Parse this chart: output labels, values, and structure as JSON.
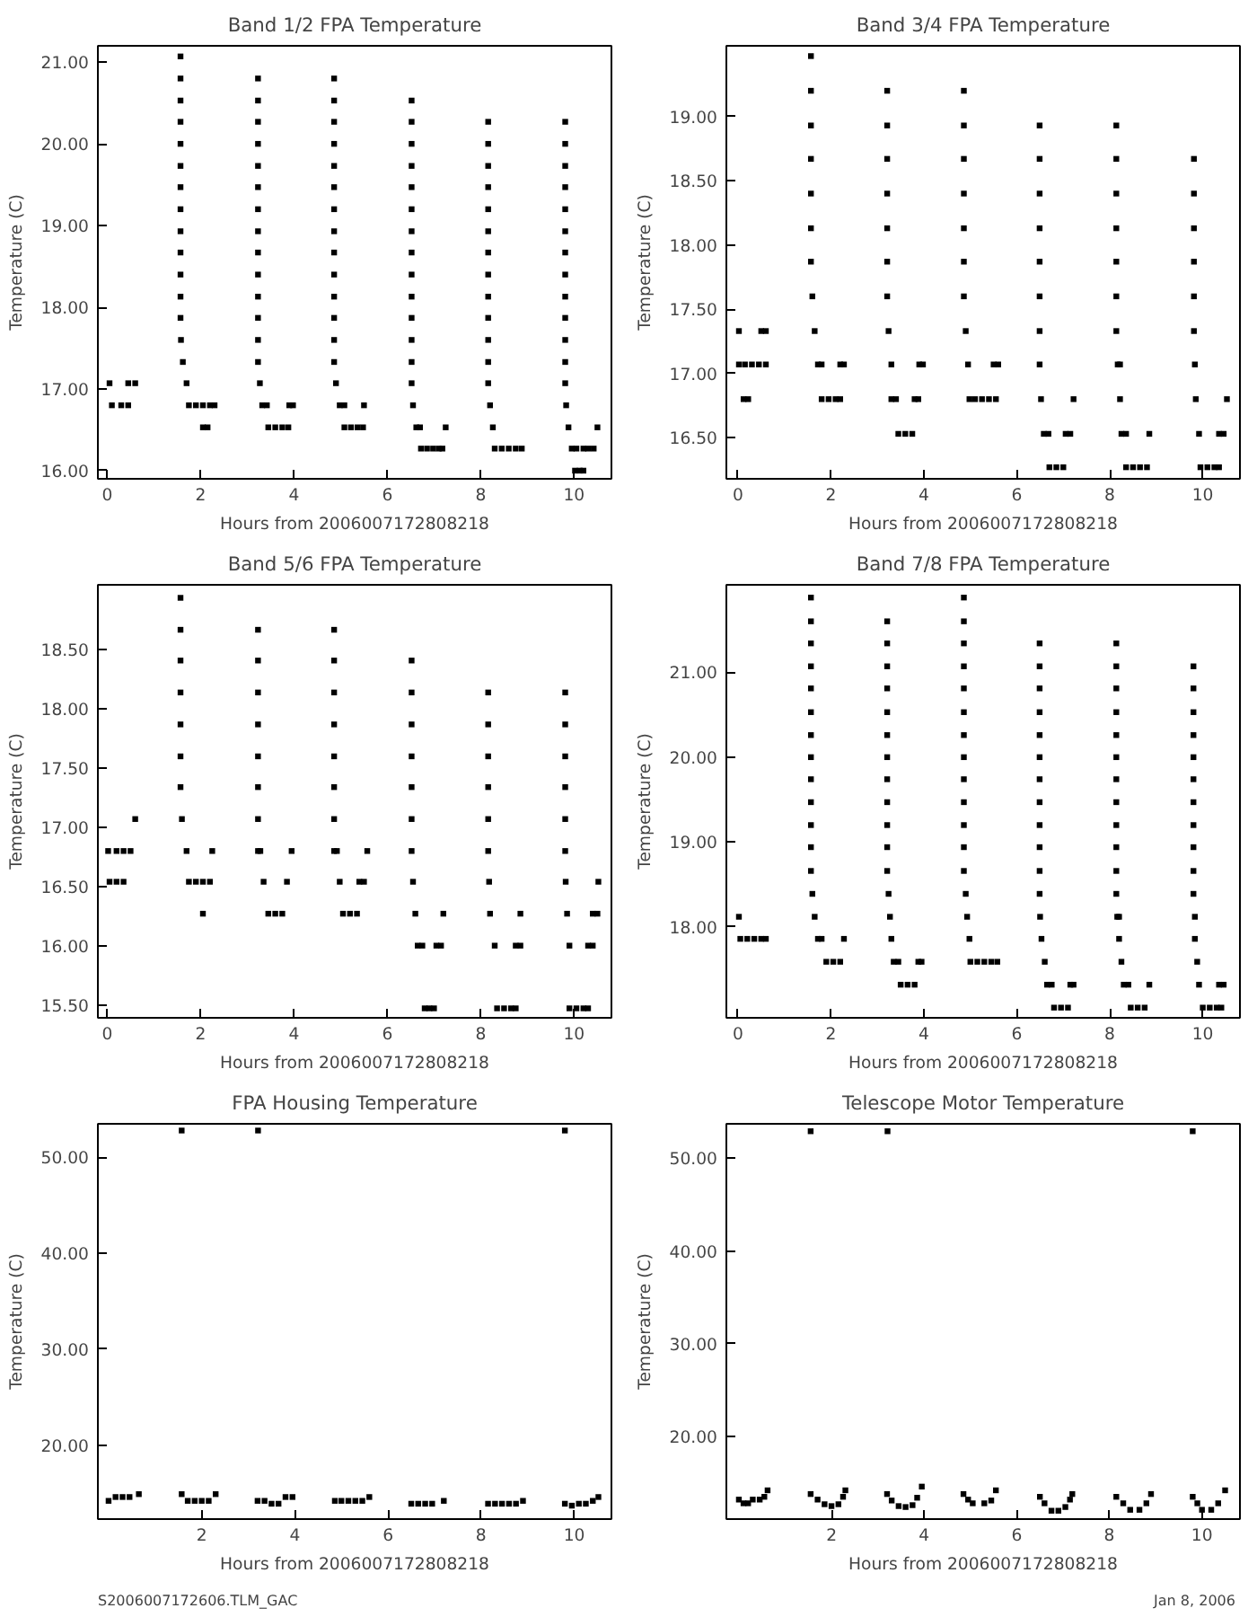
{
  "chart_data": [
    {
      "type": "scatter",
      "title": "Band 1/2 FPA Temperature",
      "xlabel": "Hours from 2006007172808218",
      "ylabel": "Temperature (C)",
      "marker": "square",
      "xlim": [
        -0.2,
        10.8
      ],
      "xticks": [
        0,
        2,
        4,
        6,
        8,
        10
      ],
      "ylim": [
        15.9,
        21.2
      ],
      "yticks": [
        {
          "value": 16,
          "label": "16.00"
        },
        {
          "value": 17,
          "label": "17.00"
        },
        {
          "value": 18,
          "label": "18.00"
        },
        {
          "value": 19,
          "label": "19.00"
        },
        {
          "value": 20,
          "label": "20.00"
        },
        {
          "value": 21,
          "label": "21.00"
        }
      ],
      "series": [
        {
          "color": "#000000",
          "x": [
            0.05,
            0.45,
            0.6,
            0.1,
            0.3,
            0.45,
            1.57,
            1.57,
            1.57,
            1.57,
            1.57,
            1.57,
            1.57,
            1.57,
            1.57,
            1.57,
            1.57,
            1.57,
            1.57,
            1.58,
            1.62,
            1.7,
            1.75,
            1.9,
            2.05,
            2.2,
            2.3,
            2.05,
            2.15,
            3.23,
            3.23,
            3.23,
            3.23,
            3.23,
            3.23,
            3.23,
            3.23,
            3.23,
            3.23,
            3.23,
            3.23,
            3.23,
            3.23,
            3.27,
            3.32,
            3.42,
            3.45,
            3.6,
            3.75,
            3.88,
            3.9,
            3.98,
            4.86,
            4.86,
            4.86,
            4.86,
            4.86,
            4.86,
            4.86,
            4.86,
            4.86,
            4.86,
            4.86,
            4.86,
            4.86,
            4.86,
            4.9,
            4.98,
            5.08,
            5.08,
            5.22,
            5.36,
            5.48,
            5.5,
            6.52,
            6.52,
            6.52,
            6.52,
            6.52,
            6.52,
            6.52,
            6.52,
            6.52,
            6.52,
            6.52,
            6.52,
            6.52,
            6.52,
            6.55,
            6.62,
            6.7,
            6.72,
            6.85,
            6.98,
            7.1,
            7.18,
            7.25,
            8.16,
            8.16,
            8.16,
            8.16,
            8.16,
            8.16,
            8.16,
            8.16,
            8.16,
            8.16,
            8.16,
            8.16,
            8.16,
            8.2,
            8.26,
            8.3,
            8.45,
            8.6,
            8.75,
            8.88,
            9.81,
            9.81,
            9.81,
            9.81,
            9.81,
            9.81,
            9.81,
            9.81,
            9.81,
            9.81,
            9.81,
            9.81,
            9.81,
            9.83,
            9.88,
            9.95,
            10.05,
            10.02,
            10.12,
            10.2,
            10.2,
            10.3,
            10.42,
            10.5
          ],
          "values": [
            17.07,
            17.07,
            17.07,
            16.8,
            16.8,
            16.8,
            21.07,
            20.8,
            20.53,
            20.27,
            20.0,
            19.73,
            19.47,
            19.2,
            18.93,
            18.67,
            18.4,
            18.13,
            17.87,
            17.6,
            17.33,
            17.07,
            16.8,
            16.8,
            16.8,
            16.8,
            16.8,
            16.53,
            16.53,
            20.8,
            20.53,
            20.27,
            20.0,
            19.73,
            19.47,
            19.2,
            18.93,
            18.67,
            18.4,
            18.13,
            17.87,
            17.6,
            17.33,
            17.07,
            16.8,
            16.8,
            16.53,
            16.53,
            16.53,
            16.53,
            16.8,
            16.8,
            20.8,
            20.53,
            20.27,
            20.0,
            19.73,
            19.47,
            19.2,
            18.93,
            18.67,
            18.4,
            18.13,
            17.87,
            17.6,
            17.33,
            17.07,
            16.8,
            16.8,
            16.53,
            16.53,
            16.53,
            16.53,
            16.8,
            20.53,
            20.27,
            20.0,
            19.73,
            19.47,
            19.2,
            18.93,
            18.67,
            18.4,
            18.13,
            17.87,
            17.6,
            17.33,
            17.07,
            16.8,
            16.53,
            16.53,
            16.27,
            16.27,
            16.27,
            16.27,
            16.27,
            16.53,
            20.27,
            20.0,
            19.73,
            19.47,
            19.2,
            18.93,
            18.67,
            18.4,
            18.13,
            17.87,
            17.6,
            17.33,
            17.07,
            16.8,
            16.53,
            16.27,
            16.27,
            16.27,
            16.27,
            16.27,
            20.27,
            20.0,
            19.73,
            19.47,
            19.2,
            18.93,
            18.67,
            18.4,
            18.13,
            17.87,
            17.6,
            17.33,
            17.07,
            16.8,
            16.53,
            16.27,
            16.27,
            16.0,
            16.0,
            16.0,
            16.27,
            16.27,
            16.27,
            16.53
          ]
        }
      ]
    },
    {
      "type": "scatter",
      "title": "Band 3/4 FPA Temperature",
      "xlabel": "Hours from 2006007172808218",
      "ylabel": "Temperature (C)",
      "marker": "square",
      "xlim": [
        -0.25,
        10.8
      ],
      "xticks": [
        0,
        2,
        4,
        6,
        8,
        10
      ],
      "ylim": [
        16.18,
        19.55
      ],
      "yticks": [
        {
          "value": 16.5,
          "label": "16.50"
        },
        {
          "value": 17,
          "label": "17.00"
        },
        {
          "value": 17.5,
          "label": "17.50"
        },
        {
          "value": 18,
          "label": "18.00"
        },
        {
          "value": 18.5,
          "label": "18.50"
        },
        {
          "value": 19,
          "label": "19.00"
        }
      ],
      "series": [
        {
          "color": "#000000",
          "x": [
            0.02,
            0.5,
            0.6,
            0.02,
            0.15,
            0.3,
            0.45,
            0.6,
            0.12,
            0.22,
            1.57,
            1.57,
            1.57,
            1.57,
            1.57,
            1.57,
            1.57,
            1.6,
            1.65,
            1.72,
            1.8,
            1.8,
            1.95,
            2.1,
            2.2,
            2.2,
            2.28,
            3.21,
            3.21,
            3.21,
            3.21,
            3.21,
            3.21,
            3.21,
            3.24,
            3.3,
            3.3,
            3.4,
            3.45,
            3.6,
            3.75,
            3.8,
            3.88,
            3.9,
            3.98,
            4.86,
            4.86,
            4.86,
            4.86,
            4.86,
            4.86,
            4.86,
            4.9,
            4.95,
            4.98,
            5.1,
            5.25,
            5.4,
            5.55,
            5.5,
            5.6,
            6.49,
            6.49,
            6.49,
            6.49,
            6.49,
            6.49,
            6.49,
            6.49,
            6.52,
            6.58,
            6.68,
            7.05,
            7.15,
            7.22,
            6.7,
            6.85,
            7.0,
            8.14,
            8.14,
            8.14,
            8.14,
            8.14,
            8.14,
            8.14,
            8.17,
            8.22,
            8.22,
            8.25,
            8.35,
            8.35,
            8.5,
            8.65,
            8.8,
            8.85,
            9.81,
            9.81,
            9.81,
            9.81,
            9.81,
            9.81,
            9.83,
            9.85,
            9.92,
            9.95,
            10.1,
            10.25,
            10.35,
            10.35,
            10.45,
            10.52
          ],
          "values": [
            17.33,
            17.33,
            17.33,
            17.07,
            17.07,
            17.07,
            17.07,
            17.07,
            16.8,
            16.8,
            19.47,
            19.2,
            18.93,
            18.67,
            18.4,
            18.13,
            17.87,
            17.6,
            17.33,
            17.07,
            17.07,
            16.8,
            16.8,
            16.8,
            16.8,
            17.07,
            17.07,
            19.2,
            18.93,
            18.67,
            18.4,
            18.13,
            17.87,
            17.6,
            17.33,
            17.07,
            16.8,
            16.8,
            16.53,
            16.53,
            16.53,
            16.8,
            16.8,
            17.07,
            17.07,
            19.2,
            18.93,
            18.67,
            18.4,
            18.13,
            17.87,
            17.6,
            17.33,
            17.07,
            16.8,
            16.8,
            16.8,
            16.8,
            16.8,
            17.07,
            17.07,
            18.93,
            18.67,
            18.4,
            18.13,
            17.87,
            17.6,
            17.33,
            17.07,
            16.8,
            16.53,
            16.53,
            16.53,
            16.53,
            16.8,
            16.27,
            16.27,
            16.27,
            18.93,
            18.67,
            18.4,
            18.13,
            17.87,
            17.6,
            17.33,
            17.07,
            17.07,
            16.8,
            16.53,
            16.53,
            16.27,
            16.27,
            16.27,
            16.27,
            16.53,
            18.67,
            18.4,
            18.13,
            17.87,
            17.6,
            17.33,
            17.07,
            16.8,
            16.53,
            16.27,
            16.27,
            16.27,
            16.27,
            16.53,
            16.53,
            16.8
          ]
        }
      ]
    },
    {
      "type": "scatter",
      "title": "Band 5/6 FPA Temperature",
      "xlabel": "Hours from 2006007172808218",
      "ylabel": "Temperature (C)",
      "marker": "square",
      "xlim": [
        -0.2,
        10.8
      ],
      "xticks": [
        0,
        2,
        4,
        6,
        8,
        10
      ],
      "ylim": [
        15.39,
        19.05
      ],
      "yticks": [
        {
          "value": 15.5,
          "label": "15.50"
        },
        {
          "value": 16,
          "label": "16.00"
        },
        {
          "value": 16.5,
          "label": "16.50"
        },
        {
          "value": 17,
          "label": "17.00"
        },
        {
          "value": 17.5,
          "label": "17.50"
        },
        {
          "value": 18,
          "label": "18.00"
        },
        {
          "value": 18.5,
          "label": "18.50"
        }
      ],
      "series": [
        {
          "color": "#000000",
          "x": [
            0.02,
            0.2,
            0.35,
            0.5,
            0.6,
            0.05,
            0.2,
            0.35,
            1.57,
            1.57,
            1.57,
            1.57,
            1.57,
            1.57,
            1.57,
            1.6,
            1.7,
            1.75,
            1.9,
            2.05,
            2.2,
            2.25,
            2.05,
            3.23,
            3.23,
            3.23,
            3.23,
            3.23,
            3.23,
            3.23,
            3.23,
            3.28,
            3.35,
            3.45,
            3.6,
            3.75,
            3.85,
            3.95,
            4.86,
            4.86,
            4.86,
            4.86,
            4.86,
            4.86,
            4.86,
            4.86,
            4.92,
            4.98,
            5.05,
            5.2,
            5.35,
            5.4,
            5.5,
            5.57,
            6.52,
            6.52,
            6.52,
            6.52,
            6.52,
            6.52,
            6.52,
            6.55,
            6.6,
            6.65,
            6.75,
            6.8,
            6.9,
            7.0,
            7.05,
            7.15,
            7.2,
            8.16,
            8.16,
            8.16,
            8.16,
            8.16,
            8.16,
            8.18,
            8.2,
            8.3,
            8.35,
            8.5,
            8.65,
            8.75,
            8.75,
            8.85,
            8.85,
            9.81,
            9.81,
            9.81,
            9.81,
            9.81,
            9.81,
            9.82,
            9.85,
            9.9,
            9.9,
            10.05,
            10.2,
            10.3,
            10.3,
            10.4,
            10.4,
            10.5,
            10.52
          ],
          "values": [
            16.8,
            16.8,
            16.8,
            16.8,
            17.07,
            16.54,
            16.54,
            16.54,
            18.94,
            18.67,
            18.41,
            18.14,
            17.87,
            17.6,
            17.34,
            17.07,
            16.8,
            16.54,
            16.54,
            16.54,
            16.54,
            16.8,
            16.27,
            18.67,
            18.41,
            18.14,
            17.87,
            17.6,
            17.34,
            17.07,
            16.8,
            16.8,
            16.54,
            16.27,
            16.27,
            16.27,
            16.54,
            16.8,
            18.67,
            18.41,
            18.14,
            17.87,
            17.6,
            17.34,
            17.07,
            16.8,
            16.8,
            16.54,
            16.27,
            16.27,
            16.27,
            16.54,
            16.54,
            16.8,
            18.41,
            18.14,
            17.87,
            17.6,
            17.34,
            17.07,
            16.8,
            16.54,
            16.27,
            16.0,
            16.0,
            15.47,
            15.47,
            15.47,
            16.0,
            16.0,
            16.27,
            18.14,
            17.87,
            17.6,
            17.34,
            17.07,
            16.8,
            16.54,
            16.27,
            16.0,
            15.47,
            15.47,
            15.47,
            15.47,
            16.0,
            16.0,
            16.27,
            18.14,
            17.87,
            17.6,
            17.34,
            17.07,
            16.8,
            16.54,
            16.27,
            16.0,
            15.47,
            15.47,
            15.47,
            15.47,
            16.0,
            16.0,
            16.27,
            16.27,
            16.54
          ]
        }
      ]
    },
    {
      "type": "scatter",
      "title": "Band 7/8 FPA Temperature",
      "xlabel": "Hours from 2006007172808218",
      "ylabel": "Temperature (C)",
      "marker": "square",
      "xlim": [
        -0.25,
        10.8
      ],
      "xticks": [
        0,
        2,
        4,
        6,
        8,
        10
      ],
      "ylim": [
        16.93,
        22.03
      ],
      "yticks": [
        {
          "value": 18,
          "label": "18.00"
        },
        {
          "value": 19,
          "label": "19.00"
        },
        {
          "value": 20,
          "label": "20.00"
        },
        {
          "value": 21,
          "label": "21.00"
        }
      ],
      "series": [
        {
          "color": "#000000",
          "x": [
            0.02,
            0.05,
            0.2,
            0.35,
            0.5,
            0.6,
            1.57,
            1.57,
            1.57,
            1.57,
            1.57,
            1.57,
            1.57,
            1.57,
            1.57,
            1.57,
            1.57,
            1.57,
            1.57,
            1.6,
            1.65,
            1.72,
            1.8,
            1.9,
            2.05,
            2.2,
            2.28,
            3.21,
            3.21,
            3.21,
            3.21,
            3.21,
            3.21,
            3.21,
            3.21,
            3.21,
            3.21,
            3.21,
            3.21,
            3.24,
            3.27,
            3.3,
            3.35,
            3.45,
            3.5,
            3.65,
            3.8,
            3.88,
            3.95,
            4.86,
            4.86,
            4.86,
            4.86,
            4.86,
            4.86,
            4.86,
            4.86,
            4.86,
            4.86,
            4.86,
            4.86,
            4.86,
            4.9,
            4.93,
            4.98,
            5.0,
            5.15,
            5.3,
            5.45,
            5.58,
            6.49,
            6.49,
            6.49,
            6.49,
            6.49,
            6.49,
            6.49,
            6.49,
            6.49,
            6.49,
            6.49,
            6.49,
            6.5,
            6.53,
            6.6,
            6.65,
            6.75,
            6.8,
            6.95,
            7.1,
            7.15,
            7.22,
            8.14,
            8.14,
            8.14,
            8.14,
            8.14,
            8.14,
            8.14,
            8.14,
            8.14,
            8.14,
            8.14,
            8.14,
            8.16,
            8.2,
            8.2,
            8.25,
            8.3,
            8.4,
            8.45,
            8.6,
            8.75,
            8.85,
            9.8,
            9.8,
            9.8,
            9.8,
            9.8,
            9.8,
            9.8,
            9.8,
            9.8,
            9.8,
            9.8,
            9.83,
            9.83,
            9.88,
            9.92,
            10.0,
            10.15,
            10.3,
            10.4,
            10.35,
            10.45
          ],
          "values": [
            18.12,
            17.86,
            17.86,
            17.86,
            17.86,
            17.86,
            21.88,
            21.6,
            21.34,
            21.07,
            20.81,
            20.53,
            20.26,
            20.0,
            19.74,
            19.47,
            19.2,
            18.94,
            18.66,
            18.39,
            18.12,
            17.86,
            17.86,
            17.59,
            17.59,
            17.59,
            17.86,
            21.6,
            21.34,
            21.07,
            20.81,
            20.53,
            20.26,
            20.0,
            19.74,
            19.47,
            19.2,
            18.94,
            18.66,
            18.39,
            18.12,
            17.86,
            17.59,
            17.59,
            17.32,
            17.32,
            17.32,
            17.59,
            17.59,
            21.88,
            21.6,
            21.34,
            21.07,
            20.81,
            20.53,
            20.26,
            20.0,
            19.74,
            19.47,
            19.2,
            18.94,
            18.66,
            18.39,
            18.12,
            17.86,
            17.59,
            17.59,
            17.59,
            17.59,
            17.59,
            21.34,
            21.07,
            20.81,
            20.53,
            20.26,
            20.0,
            19.74,
            19.47,
            19.2,
            18.94,
            18.66,
            18.39,
            18.12,
            17.86,
            17.59,
            17.32,
            17.32,
            17.05,
            17.05,
            17.05,
            17.32,
            17.32,
            21.34,
            21.07,
            20.81,
            20.53,
            20.26,
            20.0,
            19.74,
            19.47,
            19.2,
            18.94,
            18.66,
            18.39,
            18.12,
            18.12,
            17.86,
            17.59,
            17.32,
            17.32,
            17.05,
            17.05,
            17.05,
            17.32,
            21.07,
            20.81,
            20.53,
            20.26,
            20.0,
            19.74,
            19.47,
            19.2,
            18.94,
            18.66,
            18.39,
            18.12,
            17.86,
            17.59,
            17.32,
            17.05,
            17.05,
            17.05,
            17.05,
            17.32,
            17.32
          ]
        }
      ]
    },
    {
      "type": "scatter",
      "title": "FPA Housing Temperature",
      "xlabel": "Hours from 2006007172808218",
      "ylabel": "Temperature (C)",
      "marker": "square",
      "xlim": [
        -0.23,
        10.8
      ],
      "xticks": [
        2,
        4,
        6,
        8,
        10
      ],
      "ylim": [
        12.3,
        53.5
      ],
      "yticks": [
        {
          "value": 20,
          "label": "20.00"
        },
        {
          "value": 30,
          "label": "30.00"
        },
        {
          "value": 40,
          "label": "40.00"
        },
        {
          "value": 50,
          "label": "50.00"
        }
      ],
      "annotations": [
        "S2006007172606.TLM_GAC"
      ],
      "series": [
        {
          "color": "#000000",
          "x": [
            0.0,
            0.15,
            0.3,
            0.45,
            0.65,
            1.57,
            1.57,
            1.7,
            1.85,
            2.0,
            2.15,
            2.3,
            3.21,
            3.2,
            3.35,
            3.5,
            3.65,
            3.8,
            3.95,
            4.86,
            5.0,
            5.15,
            5.3,
            5.45,
            5.6,
            6.5,
            6.65,
            6.8,
            6.95,
            7.2,
            8.15,
            8.3,
            8.45,
            8.6,
            8.75,
            8.9,
            9.8,
            9.8,
            9.95,
            10.1,
            10.25,
            10.4,
            10.52
          ],
          "values": [
            14.2,
            14.6,
            14.6,
            14.6,
            14.9,
            52.8,
            14.9,
            14.2,
            14.2,
            14.2,
            14.2,
            14.9,
            52.8,
            14.2,
            14.2,
            13.9,
            13.9,
            14.6,
            14.6,
            14.2,
            14.2,
            14.2,
            14.2,
            14.2,
            14.6,
            13.9,
            13.9,
            13.9,
            13.9,
            14.2,
            13.9,
            13.9,
            13.9,
            13.9,
            13.9,
            14.2,
            52.8,
            13.9,
            13.7,
            13.9,
            13.9,
            14.2,
            14.6
          ]
        }
      ]
    },
    {
      "type": "scatter",
      "title": "Telescope Motor Temperature",
      "xlabel": "Hours from 2006007172808218",
      "ylabel": "Temperature (C)",
      "marker": "square",
      "xlim": [
        -0.27,
        10.82
      ],
      "xticks": [
        2,
        4,
        6,
        8,
        10
      ],
      "ylim": [
        11.1,
        53.7
      ],
      "yticks": [
        {
          "value": 20,
          "label": "20.00"
        },
        {
          "value": 30,
          "label": "30.00"
        },
        {
          "value": 40,
          "label": "40.00"
        },
        {
          "value": 50,
          "label": "50.00"
        }
      ],
      "annotations": [
        "Jan  8, 2006"
      ],
      "series": [
        {
          "color": "#000000",
          "x": [
            0.0,
            0.1,
            0.2,
            0.3,
            0.45,
            0.55,
            0.62,
            1.55,
            1.55,
            1.7,
            1.85,
            2.0,
            2.15,
            2.25,
            2.3,
            3.21,
            3.2,
            3.3,
            3.45,
            3.6,
            3.75,
            3.85,
            3.95,
            4.85,
            4.95,
            5.05,
            5.3,
            5.45,
            5.55,
            6.5,
            6.6,
            6.75,
            6.9,
            7.05,
            7.15,
            7.2,
            8.15,
            8.3,
            8.45,
            8.65,
            8.8,
            8.9,
            9.8,
            9.8,
            9.9,
            10.0,
            10.2,
            10.35,
            10.5
          ],
          "values": [
            13.2,
            12.8,
            12.8,
            13.2,
            13.2,
            13.5,
            14.2,
            52.9,
            13.8,
            13.2,
            12.7,
            12.5,
            12.7,
            13.5,
            14.2,
            52.9,
            13.8,
            13.1,
            12.5,
            12.4,
            12.6,
            13.4,
            14.6,
            13.8,
            13.2,
            12.8,
            12.8,
            13.1,
            14.2,
            13.5,
            12.8,
            12.0,
            12.0,
            12.4,
            13.2,
            13.8,
            13.5,
            12.8,
            12.1,
            12.1,
            12.8,
            13.8,
            52.9,
            13.5,
            12.8,
            12.1,
            12.1,
            12.8,
            14.2
          ]
        }
      ]
    }
  ]
}
